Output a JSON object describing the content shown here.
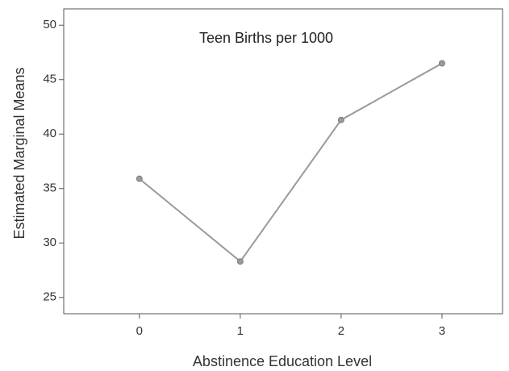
{
  "chart_data": {
    "type": "line",
    "title": "Teen Births per 1000",
    "xlabel": "Abstinence Education Level",
    "ylabel": "Estimated Marginal Means",
    "x": [
      0,
      1,
      2,
      3
    ],
    "x_ticks": [
      "0",
      "1",
      "2",
      "3"
    ],
    "xlim": [
      -0.75,
      3.6
    ],
    "y_ticks": [
      "25",
      "30",
      "35",
      "40",
      "45",
      "50"
    ],
    "ylim": [
      23.5,
      51.5
    ],
    "series": [
      {
        "values": [
          35.9,
          28.3,
          41.3,
          46.5
        ]
      }
    ],
    "grid": false,
    "legend": "none",
    "colors": {
      "line": "#9a9a9a",
      "marker": "#9a9a9a",
      "axis": "#555555"
    }
  }
}
